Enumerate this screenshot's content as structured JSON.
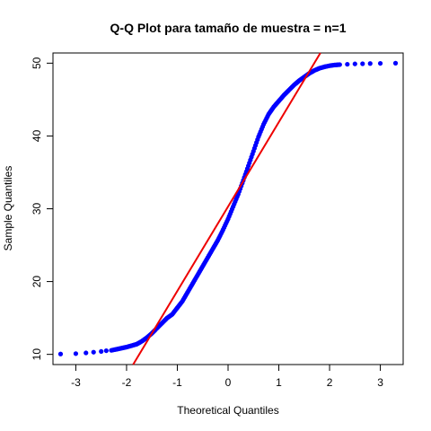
{
  "chart_data": {
    "type": "scatter",
    "title": "Q-Q Plot para tamaño de muestra = n=1",
    "xlabel": "Theoretical Quantiles",
    "ylabel": "Sample Quantiles",
    "xlim": [
      -3.45,
      3.45
    ],
    "ylim": [
      8.6,
      51.4
    ],
    "x_ticks": [
      -3,
      -2,
      -1,
      0,
      1,
      2,
      3
    ],
    "y_ticks": [
      10,
      20,
      30,
      40,
      50
    ],
    "grid": false,
    "legend": "none",
    "point_color": "#0000ff",
    "line_color": "#ee0000",
    "reference_line": {
      "slope": 11.6,
      "intercept": 30.3
    },
    "series": [
      {
        "points": [
          [
            -3.3,
            10.05
          ],
          [
            -3.0,
            10.1
          ],
          [
            -2.8,
            10.2
          ],
          [
            -2.65,
            10.3
          ],
          [
            -2.5,
            10.4
          ],
          [
            -2.4,
            10.5
          ],
          [
            -2.3,
            10.55
          ],
          [
            -2.2,
            10.7
          ],
          [
            -2.1,
            10.85
          ],
          [
            -2.0,
            11.0
          ],
          [
            -1.9,
            11.2
          ],
          [
            -1.8,
            11.4
          ],
          [
            -1.7,
            11.8
          ],
          [
            -1.6,
            12.3
          ],
          [
            -1.5,
            12.9
          ],
          [
            -1.4,
            13.6
          ],
          [
            -1.3,
            14.3
          ],
          [
            -1.2,
            15.0
          ],
          [
            -1.1,
            15.5
          ],
          [
            -1.0,
            16.4
          ],
          [
            -0.9,
            17.3
          ],
          [
            -0.8,
            18.5
          ],
          [
            -0.7,
            19.7
          ],
          [
            -0.6,
            20.9
          ],
          [
            -0.5,
            22.1
          ],
          [
            -0.4,
            23.3
          ],
          [
            -0.3,
            24.5
          ],
          [
            -0.2,
            25.7
          ],
          [
            -0.1,
            27.1
          ],
          [
            0.0,
            28.6
          ],
          [
            0.1,
            30.3
          ],
          [
            0.2,
            32.0
          ],
          [
            0.3,
            33.9
          ],
          [
            0.4,
            35.9
          ],
          [
            0.5,
            37.9
          ],
          [
            0.6,
            39.9
          ],
          [
            0.7,
            41.6
          ],
          [
            0.8,
            43.0
          ],
          [
            0.9,
            44.0
          ],
          [
            1.0,
            44.8
          ],
          [
            1.1,
            45.6
          ],
          [
            1.2,
            46.3
          ],
          [
            1.3,
            47.0
          ],
          [
            1.4,
            47.6
          ],
          [
            1.5,
            48.1
          ],
          [
            1.6,
            48.6
          ],
          [
            1.7,
            49.0
          ],
          [
            1.8,
            49.3
          ],
          [
            1.9,
            49.5
          ],
          [
            2.0,
            49.65
          ],
          [
            2.1,
            49.75
          ],
          [
            2.2,
            49.8
          ],
          [
            2.35,
            49.85
          ],
          [
            2.5,
            49.9
          ],
          [
            2.65,
            49.92
          ],
          [
            2.8,
            49.95
          ],
          [
            3.0,
            49.97
          ],
          [
            3.3,
            50.0
          ]
        ]
      }
    ]
  }
}
